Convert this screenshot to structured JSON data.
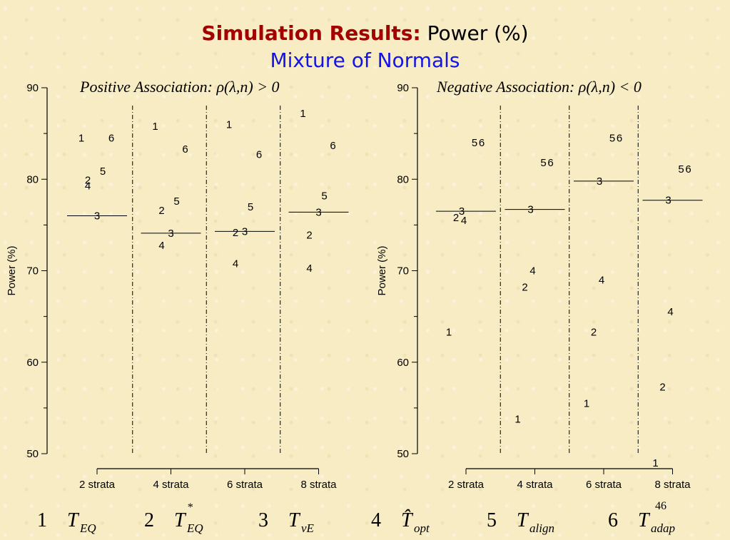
{
  "title": {
    "part1": "Simulation Results:",
    "part2": "Power (%)",
    "subtitle": "Mixture of Normals"
  },
  "page_number": "46",
  "legend": [
    {
      "num": "1",
      "sym": "T",
      "sub": "EQ"
    },
    {
      "num": "2",
      "sym": "T",
      "sup": "*",
      "sub": "EQ"
    },
    {
      "num": "3",
      "sym": "T",
      "sub": "vE"
    },
    {
      "num": "4",
      "sym": "T̂",
      "sub": "opt"
    },
    {
      "num": "5",
      "sym": "T",
      "sub": "align"
    },
    {
      "num": "6",
      "sym": "T",
      "sub": "adap"
    }
  ],
  "chart_data": [
    {
      "type": "scatter",
      "title": "Positive Association: ρ(λ,n) > 0",
      "ylabel": "Power (%)",
      "ylim": [
        50,
        90
      ],
      "yticks": [
        50,
        60,
        70,
        80,
        90
      ],
      "categories": [
        "2 strata",
        "4 strata",
        "6 strata",
        "8 strata"
      ],
      "markers": [
        "1",
        "2",
        "3",
        "4",
        "5",
        "6"
      ],
      "series": [
        {
          "marker": "1",
          "values": [
            84.5,
            85.8,
            86.0,
            87.2
          ]
        },
        {
          "marker": "2",
          "values": [
            79.5,
            76.2,
            73.8,
            73.5
          ]
        },
        {
          "marker": "3",
          "values": [
            76.0,
            74.1,
            74.3,
            76.4
          ]
        },
        {
          "marker": "4",
          "values": [
            78.8,
            72.3,
            70.3,
            69.8
          ]
        },
        {
          "marker": "5",
          "values": [
            80.5,
            77.2,
            76.6,
            77.8
          ]
        },
        {
          "marker": "6",
          "values": [
            84.5,
            83.3,
            82.7,
            83.7
          ]
        }
      ],
      "reference_values": [
        76.0,
        74.1,
        74.3,
        76.4
      ]
    },
    {
      "type": "scatter",
      "title": "Negative Association: ρ(λ,n) < 0",
      "ylabel": "Power (%)",
      "ylim": [
        50,
        90
      ],
      "yticks": [
        50,
        60,
        70,
        80,
        90
      ],
      "categories": [
        "2 strata",
        "4 strata",
        "6 strata",
        "8 strata"
      ],
      "markers": [
        "1",
        "2",
        "3",
        "4",
        "5",
        "6"
      ],
      "series": [
        {
          "marker": "1",
          "values": [
            63.3,
            53.8,
            55.5,
            49.0
          ]
        },
        {
          "marker": "2",
          "values": [
            75.8,
            68.2,
            63.3,
            57.3
          ]
        },
        {
          "marker": "3",
          "values": [
            76.5,
            76.7,
            79.8,
            77.7
          ]
        },
        {
          "marker": "4",
          "values": [
            75.5,
            70.0,
            69.0,
            65.5
          ]
        },
        {
          "marker": "5",
          "values": [
            84.0,
            81.8,
            84.5,
            81.1
          ]
        },
        {
          "marker": "6",
          "values": [
            84.0,
            81.8,
            84.5,
            81.1
          ]
        }
      ],
      "reference_values": [
        76.5,
        76.7,
        79.8,
        77.7
      ]
    }
  ]
}
